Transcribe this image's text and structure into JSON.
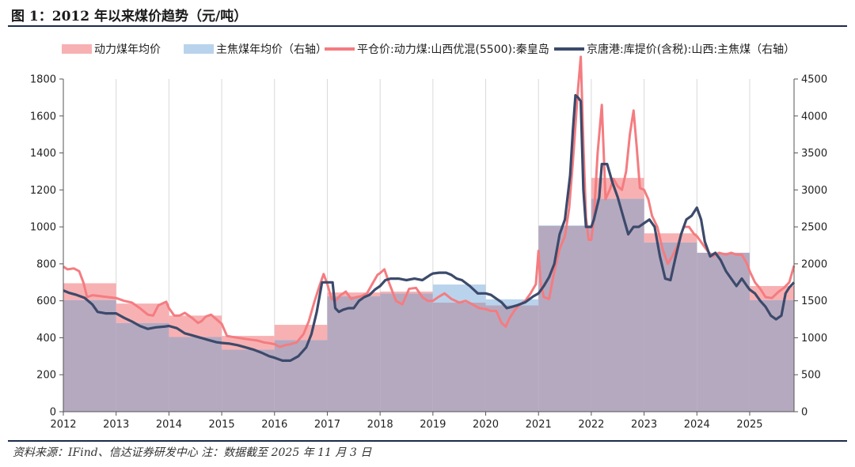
{
  "figure_title": "图 1：2012 年以来煤价趋势（元/吨）",
  "source_note": "资料来源：IFind、信达证券研发中心 注：数据截至 2025 年 11 月 3 日",
  "colors": {
    "thermal_avg_fill": "#f7b1b3",
    "coking_avg_fill": "#b9d3ec",
    "overlap_fill": "#b5a9c0",
    "thermal_spot_line": "#f47c80",
    "coking_price_line": "#3c4a6b",
    "rule": "#1c2b4a"
  },
  "chart_data": {
    "type": "area",
    "x_tick_labels": [
      "2012",
      "2013",
      "2014",
      "2015",
      "2016",
      "2017",
      "2018",
      "2019",
      "2020",
      "2021",
      "2022",
      "2023",
      "2024",
      "2025"
    ],
    "x_range": [
      2012,
      2025.84
    ],
    "left_axis": {
      "ylim": [
        0,
        1800
      ],
      "ticks": [
        0,
        200,
        400,
        600,
        800,
        1000,
        1200,
        1400,
        1600,
        1800
      ]
    },
    "right_axis": {
      "ylim": [
        0,
        4500
      ],
      "ticks": [
        0,
        500,
        1000,
        1500,
        2000,
        2500,
        3000,
        3500,
        4000,
        4500
      ]
    },
    "grid": "vertical lines at each year",
    "legend_position": "top",
    "series": [
      {
        "name": "动力煤年均价",
        "kind": "annual-average-step",
        "axis": "left",
        "years": [
          2012,
          2013,
          2014,
          2015,
          2016,
          2017,
          2018,
          2019,
          2020,
          2021,
          2022,
          2023,
          2024,
          2025
        ],
        "values": [
          695,
          585,
          520,
          410,
          470,
          645,
          650,
          590,
          575,
          1005,
          1265,
          965,
          860,
          680
        ]
      },
      {
        "name": "主焦煤年均价（右轴）",
        "kind": "annual-average-step",
        "axis": "right",
        "years": [
          2012,
          2013,
          2014,
          2015,
          2016,
          2017,
          2018,
          2019,
          2020,
          2021,
          2022,
          2023,
          2024,
          2025
        ],
        "values": [
          1510,
          1200,
          1010,
          840,
          970,
          1560,
          1600,
          1720,
          1520,
          2520,
          2880,
          2290,
          2150,
          1510
        ]
      },
      {
        "name": "平仓价:动力煤:山西优混(5500):秦皇岛",
        "kind": "line",
        "axis": "left",
        "points": [
          [
            2012.0,
            785
          ],
          [
            2012.08,
            770
          ],
          [
            2012.2,
            775
          ],
          [
            2012.3,
            760
          ],
          [
            2012.38,
            700
          ],
          [
            2012.45,
            620
          ],
          [
            2012.55,
            630
          ],
          [
            2012.7,
            625
          ],
          [
            2012.85,
            620
          ],
          [
            2013.0,
            615
          ],
          [
            2013.15,
            600
          ],
          [
            2013.3,
            590
          ],
          [
            2013.45,
            560
          ],
          [
            2013.6,
            525
          ],
          [
            2013.7,
            520
          ],
          [
            2013.8,
            575
          ],
          [
            2013.95,
            595
          ],
          [
            2014.0,
            560
          ],
          [
            2014.1,
            520
          ],
          [
            2014.2,
            520
          ],
          [
            2014.3,
            535
          ],
          [
            2014.45,
            505
          ],
          [
            2014.55,
            480
          ],
          [
            2014.62,
            490
          ],
          [
            2014.7,
            515
          ],
          [
            2014.8,
            525
          ],
          [
            2014.9,
            500
          ],
          [
            2015.0,
            475
          ],
          [
            2015.1,
            410
          ],
          [
            2015.2,
            405
          ],
          [
            2015.3,
            400
          ],
          [
            2015.42,
            395
          ],
          [
            2015.55,
            390
          ],
          [
            2015.68,
            385
          ],
          [
            2015.8,
            375
          ],
          [
            2015.92,
            370
          ],
          [
            2016.0,
            365
          ],
          [
            2016.1,
            350
          ],
          [
            2016.2,
            360
          ],
          [
            2016.3,
            365
          ],
          [
            2016.42,
            375
          ],
          [
            2016.55,
            420
          ],
          [
            2016.65,
            490
          ],
          [
            2016.75,
            590
          ],
          [
            2016.85,
            680
          ],
          [
            2016.93,
            745
          ],
          [
            2017.0,
            690
          ],
          [
            2017.08,
            610
          ],
          [
            2017.15,
            600
          ],
          [
            2017.25,
            630
          ],
          [
            2017.35,
            650
          ],
          [
            2017.45,
            610
          ],
          [
            2017.55,
            620
          ],
          [
            2017.65,
            625
          ],
          [
            2017.75,
            640
          ],
          [
            2017.85,
            690
          ],
          [
            2017.95,
            740
          ],
          [
            2018.0,
            750
          ],
          [
            2018.08,
            770
          ],
          [
            2018.18,
            690
          ],
          [
            2018.3,
            600
          ],
          [
            2018.42,
            580
          ],
          [
            2018.55,
            665
          ],
          [
            2018.68,
            670
          ],
          [
            2018.8,
            620
          ],
          [
            2018.9,
            600
          ],
          [
            2019.0,
            600
          ],
          [
            2019.1,
            620
          ],
          [
            2019.22,
            640
          ],
          [
            2019.35,
            610
          ],
          [
            2019.5,
            590
          ],
          [
            2019.62,
            600
          ],
          [
            2019.75,
            580
          ],
          [
            2019.88,
            560
          ],
          [
            2020.0,
            555
          ],
          [
            2020.1,
            545
          ],
          [
            2020.2,
            545
          ],
          [
            2020.3,
            480
          ],
          [
            2020.38,
            460
          ],
          [
            2020.45,
            505
          ],
          [
            2020.55,
            550
          ],
          [
            2020.65,
            580
          ],
          [
            2020.75,
            600
          ],
          [
            2020.85,
            640
          ],
          [
            2020.95,
            690
          ],
          [
            2021.0,
            870
          ],
          [
            2021.04,
            700
          ],
          [
            2021.1,
            620
          ],
          [
            2021.2,
            610
          ],
          [
            2021.3,
            760
          ],
          [
            2021.4,
            880
          ],
          [
            2021.5,
            950
          ],
          [
            2021.58,
            1100
          ],
          [
            2021.65,
            1350
          ],
          [
            2021.7,
            1550
          ],
          [
            2021.75,
            1750
          ],
          [
            2021.8,
            1920
          ],
          [
            2021.85,
            1450
          ],
          [
            2021.9,
            1050
          ],
          [
            2021.95,
            930
          ],
          [
            2022.0,
            930
          ],
          [
            2022.05,
            1050
          ],
          [
            2022.12,
            1400
          ],
          [
            2022.2,
            1660
          ],
          [
            2022.27,
            1150
          ],
          [
            2022.35,
            1200
          ],
          [
            2022.42,
            1260
          ],
          [
            2022.5,
            1220
          ],
          [
            2022.58,
            1200
          ],
          [
            2022.66,
            1300
          ],
          [
            2022.73,
            1500
          ],
          [
            2022.8,
            1630
          ],
          [
            2022.86,
            1430
          ],
          [
            2022.92,
            1210
          ],
          [
            2023.0,
            1200
          ],
          [
            2023.08,
            1150
          ],
          [
            2023.15,
            1060
          ],
          [
            2023.25,
            1000
          ],
          [
            2023.35,
            880
          ],
          [
            2023.45,
            800
          ],
          [
            2023.55,
            850
          ],
          [
            2023.65,
            910
          ],
          [
            2023.75,
            1000
          ],
          [
            2023.85,
            1000
          ],
          [
            2023.95,
            960
          ],
          [
            2024.0,
            950
          ],
          [
            2024.1,
            910
          ],
          [
            2024.2,
            870
          ],
          [
            2024.3,
            840
          ],
          [
            2024.42,
            860
          ],
          [
            2024.55,
            850
          ],
          [
            2024.65,
            860
          ],
          [
            2024.75,
            850
          ],
          [
            2024.85,
            850
          ],
          [
            2024.95,
            800
          ],
          [
            2025.0,
            760
          ],
          [
            2025.1,
            700
          ],
          [
            2025.2,
            665
          ],
          [
            2025.3,
            620
          ],
          [
            2025.42,
            615
          ],
          [
            2025.55,
            650
          ],
          [
            2025.65,
            670
          ],
          [
            2025.75,
            700
          ],
          [
            2025.84,
            790
          ]
        ]
      },
      {
        "name": "京唐港:库提价(含税):山西:主焦煤（右轴）",
        "kind": "line",
        "axis": "right",
        "points": [
          [
            2012.0,
            1640
          ],
          [
            2012.1,
            1610
          ],
          [
            2012.25,
            1580
          ],
          [
            2012.4,
            1540
          ],
          [
            2012.55,
            1450
          ],
          [
            2012.65,
            1350
          ],
          [
            2012.8,
            1330
          ],
          [
            2013.0,
            1330
          ],
          [
            2013.15,
            1270
          ],
          [
            2013.3,
            1220
          ],
          [
            2013.45,
            1160
          ],
          [
            2013.6,
            1120
          ],
          [
            2013.75,
            1140
          ],
          [
            2013.9,
            1150
          ],
          [
            2014.0,
            1160
          ],
          [
            2014.15,
            1130
          ],
          [
            2014.3,
            1060
          ],
          [
            2014.45,
            1030
          ],
          [
            2014.6,
            1000
          ],
          [
            2014.75,
            970
          ],
          [
            2014.9,
            940
          ],
          [
            2015.0,
            930
          ],
          [
            2015.15,
            920
          ],
          [
            2015.3,
            900
          ],
          [
            2015.45,
            870
          ],
          [
            2015.6,
            840
          ],
          [
            2015.75,
            800
          ],
          [
            2015.9,
            750
          ],
          [
            2016.0,
            730
          ],
          [
            2016.15,
            690
          ],
          [
            2016.3,
            690
          ],
          [
            2016.45,
            750
          ],
          [
            2016.6,
            870
          ],
          [
            2016.7,
            1050
          ],
          [
            2016.8,
            1350
          ],
          [
            2016.9,
            1750
          ],
          [
            2017.0,
            1750
          ],
          [
            2017.1,
            1750
          ],
          [
            2017.15,
            1400
          ],
          [
            2017.22,
            1350
          ],
          [
            2017.3,
            1380
          ],
          [
            2017.4,
            1400
          ],
          [
            2017.5,
            1400
          ],
          [
            2017.6,
            1500
          ],
          [
            2017.7,
            1550
          ],
          [
            2017.8,
            1580
          ],
          [
            2017.9,
            1650
          ],
          [
            2018.0,
            1700
          ],
          [
            2018.1,
            1780
          ],
          [
            2018.2,
            1800
          ],
          [
            2018.35,
            1800
          ],
          [
            2018.5,
            1780
          ],
          [
            2018.65,
            1800
          ],
          [
            2018.8,
            1780
          ],
          [
            2018.95,
            1850
          ],
          [
            2019.0,
            1870
          ],
          [
            2019.12,
            1880
          ],
          [
            2019.25,
            1880
          ],
          [
            2019.35,
            1850
          ],
          [
            2019.45,
            1800
          ],
          [
            2019.55,
            1780
          ],
          [
            2019.7,
            1700
          ],
          [
            2019.85,
            1600
          ],
          [
            2020.0,
            1600
          ],
          [
            2020.1,
            1580
          ],
          [
            2020.2,
            1530
          ],
          [
            2020.3,
            1480
          ],
          [
            2020.4,
            1400
          ],
          [
            2020.5,
            1420
          ],
          [
            2020.6,
            1440
          ],
          [
            2020.75,
            1480
          ],
          [
            2020.9,
            1560
          ],
          [
            2021.0,
            1600
          ],
          [
            2021.1,
            1700
          ],
          [
            2021.2,
            1820
          ],
          [
            2021.3,
            2000
          ],
          [
            2021.4,
            2400
          ],
          [
            2021.5,
            2600
          ],
          [
            2021.6,
            3200
          ],
          [
            2021.65,
            3800
          ],
          [
            2021.7,
            4280
          ],
          [
            2021.75,
            4250
          ],
          [
            2021.8,
            4200
          ],
          [
            2021.85,
            3000
          ],
          [
            2021.9,
            2500
          ],
          [
            2022.0,
            2500
          ],
          [
            2022.05,
            2600
          ],
          [
            2022.15,
            2900
          ],
          [
            2022.2,
            3350
          ],
          [
            2022.3,
            3350
          ],
          [
            2022.4,
            3100
          ],
          [
            2022.5,
            2900
          ],
          [
            2022.6,
            2650
          ],
          [
            2022.7,
            2400
          ],
          [
            2022.8,
            2500
          ],
          [
            2022.9,
            2500
          ],
          [
            2023.0,
            2550
          ],
          [
            2023.1,
            2600
          ],
          [
            2023.2,
            2500
          ],
          [
            2023.3,
            2100
          ],
          [
            2023.4,
            1800
          ],
          [
            2023.5,
            1780
          ],
          [
            2023.6,
            2100
          ],
          [
            2023.7,
            2400
          ],
          [
            2023.8,
            2600
          ],
          [
            2023.9,
            2650
          ],
          [
            2024.0,
            2760
          ],
          [
            2024.08,
            2600
          ],
          [
            2024.15,
            2300
          ],
          [
            2024.25,
            2100
          ],
          [
            2024.35,
            2150
          ],
          [
            2024.45,
            2050
          ],
          [
            2024.55,
            1900
          ],
          [
            2024.65,
            1800
          ],
          [
            2024.75,
            1700
          ],
          [
            2024.85,
            1800
          ],
          [
            2024.95,
            1700
          ],
          [
            2025.0,
            1650
          ],
          [
            2025.1,
            1600
          ],
          [
            2025.2,
            1500
          ],
          [
            2025.3,
            1420
          ],
          [
            2025.4,
            1300
          ],
          [
            2025.5,
            1250
          ],
          [
            2025.6,
            1300
          ],
          [
            2025.68,
            1600
          ],
          [
            2025.75,
            1680
          ],
          [
            2025.84,
            1750
          ]
        ]
      }
    ]
  }
}
